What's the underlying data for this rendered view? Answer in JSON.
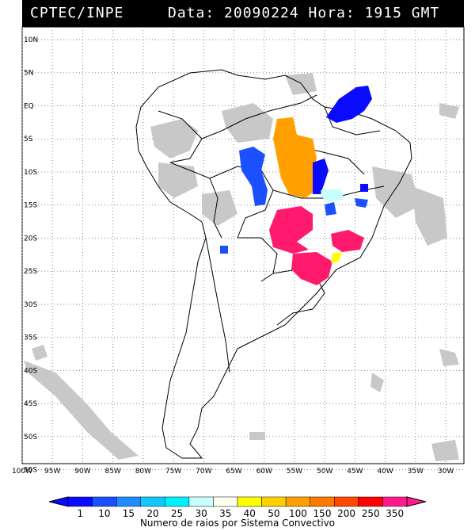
{
  "header": {
    "agency": "CPTEC/INPE",
    "date_time": "Data: 20090224 Hora: 1915 GMT"
  },
  "map": {
    "lat_labels": [
      "10N",
      "5N",
      "EQ",
      "5S",
      "10S",
      "15S",
      "20S",
      "25S",
      "30S",
      "35S",
      "40S",
      "45S",
      "50S",
      "55S"
    ],
    "lon_labels": [
      "100W",
      "95W",
      "90W",
      "85W",
      "80W",
      "75W",
      "70W",
      "65W",
      "60W",
      "55W",
      "50W",
      "45W",
      "40W",
      "35W",
      "30W"
    ],
    "lat_range": [
      10,
      -56
    ],
    "lon_range": [
      -100,
      -27
    ]
  },
  "colorbar": {
    "ticks": [
      "1",
      "10",
      "15",
      "20",
      "25",
      "30",
      "35",
      "40",
      "50",
      "100",
      "150",
      "200",
      "250",
      "350"
    ],
    "colors": [
      "#0a0aff",
      "#1a50ff",
      "#1e8cff",
      "#10c8ff",
      "#00f0ff",
      "#c8ffff",
      "#fffff0",
      "#ffff00",
      "#ffd000",
      "#ffa000",
      "#ff7800",
      "#ff4800",
      "#ff0000",
      "#ff1a8c"
    ],
    "title": "Numero de raios por Sistema Convectivo"
  },
  "legend_colors": {
    "cloud": "#c8c8c8",
    "blue": "#0a0aff",
    "mid_blue": "#1a50ff",
    "orange": "#ffa000",
    "magenta": "#ff1a6e",
    "yellow": "#ffff00",
    "cyan_light": "#c8ffff"
  }
}
